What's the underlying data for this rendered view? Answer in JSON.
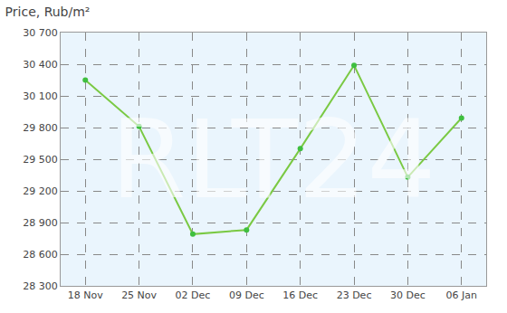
{
  "chart_data": {
    "type": "line",
    "title": "Price, Rub/m²",
    "categories": [
      "18 Nov",
      "25 Nov",
      "02 Dec",
      "09 Dec",
      "16 Dec",
      "23 Dec",
      "30 Dec",
      "06 Jan"
    ],
    "values": [
      30250,
      29810,
      28790,
      28830,
      29600,
      30390,
      29330,
      29890
    ],
    "color": "#7ac943",
    "marker": "circle",
    "ylim": [
      28300,
      30700
    ],
    "yticks": [
      {
        "value": 28300,
        "label": "28 300"
      },
      {
        "value": 28600,
        "label": "28 600"
      },
      {
        "value": 28900,
        "label": "28 900"
      },
      {
        "value": 29200,
        "label": "29 200"
      },
      {
        "value": 29500,
        "label": "29 500"
      },
      {
        "value": 29800,
        "label": "29 800"
      },
      {
        "value": 30100,
        "label": "30 100"
      },
      {
        "value": 30400,
        "label": "30 400"
      },
      {
        "value": 30700,
        "label": "30 700"
      }
    ],
    "grid": true,
    "annotations": [
      "RLT24"
    ]
  }
}
